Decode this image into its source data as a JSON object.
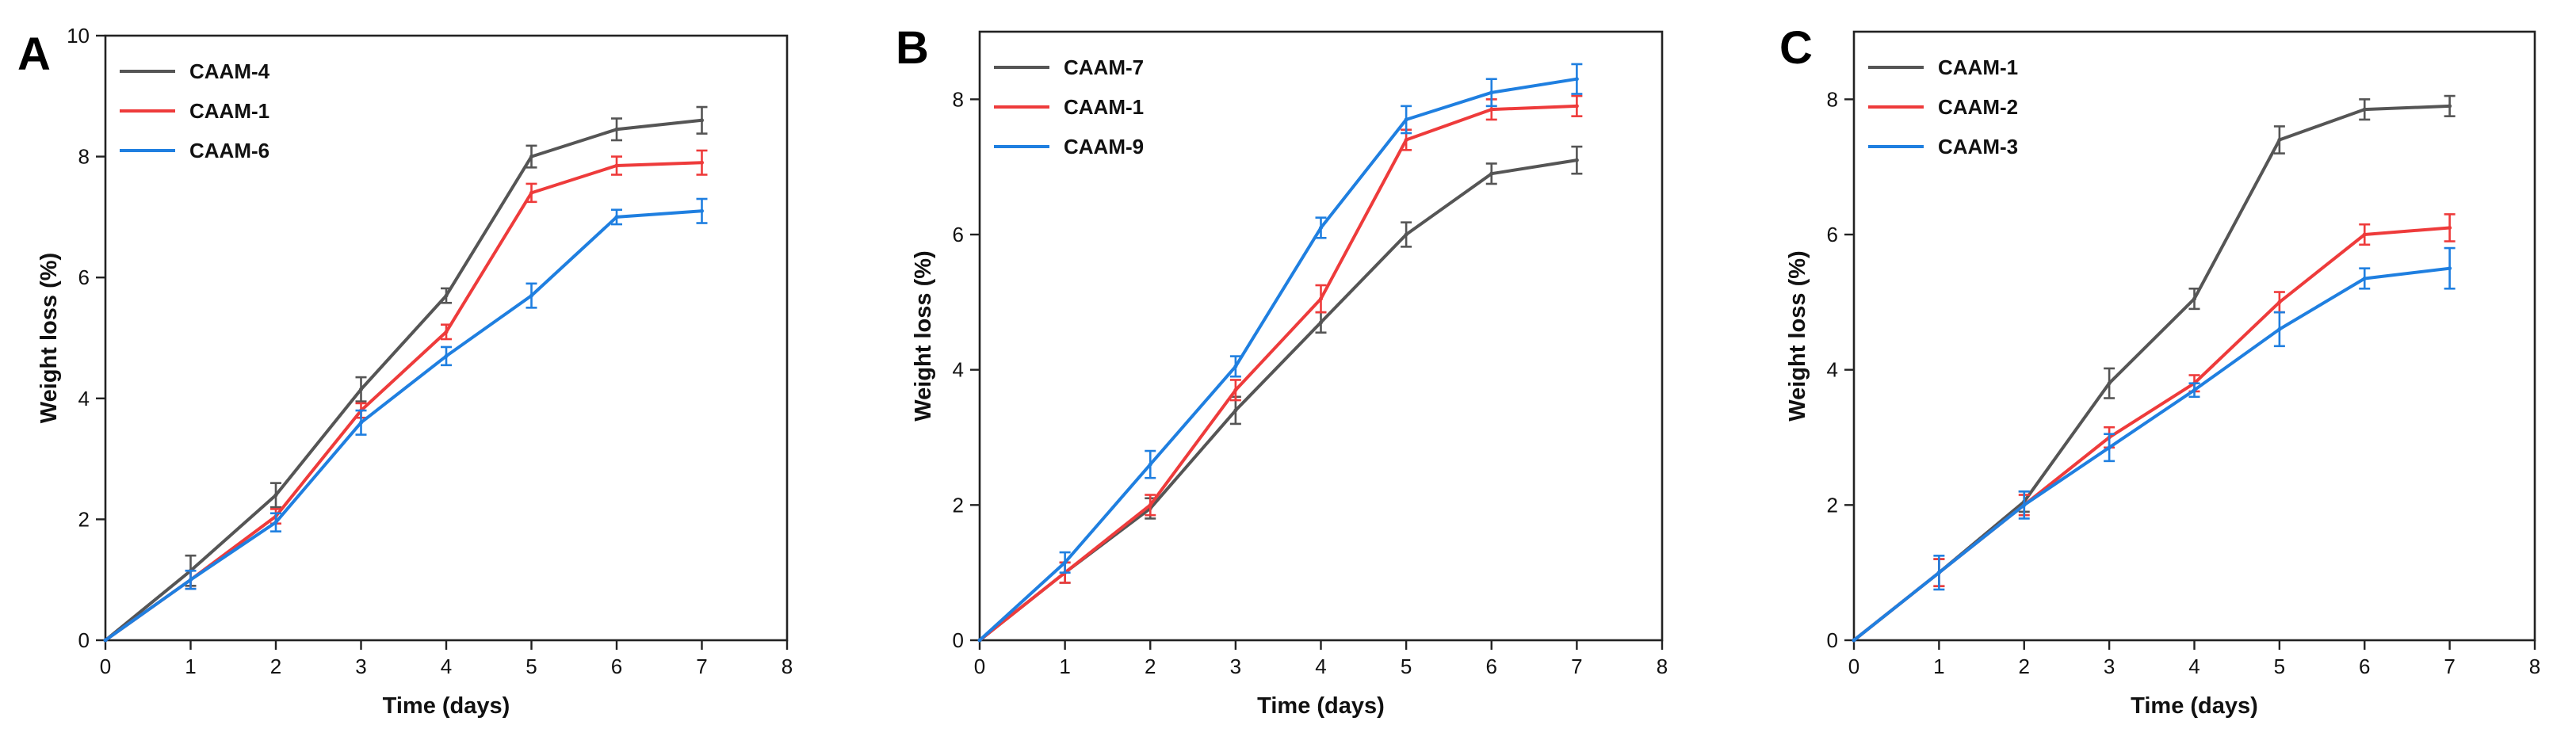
{
  "colors": {
    "black": "#555555",
    "red": "#ee3b3b",
    "blue": "#1f7fe0",
    "axis": "#222222"
  },
  "chart_data": [
    {
      "type": "line",
      "panel_label": "A",
      "xlabel": "Time (days)",
      "ylabel": "Weight loss (%)",
      "xlim": [
        0,
        8
      ],
      "ylim": [
        0,
        10
      ],
      "xticks": [
        "0",
        "1",
        "2",
        "3",
        "4",
        "5",
        "6",
        "7",
        "8"
      ],
      "yticks": [
        "0",
        "2",
        "4",
        "6",
        "8",
        "10"
      ],
      "x": [
        0,
        1,
        2,
        3,
        4,
        5,
        6,
        7
      ],
      "legend_position": "top-left",
      "series": [
        {
          "name": "CAAM-4",
          "color": "#555555",
          "values": [
            0,
            1.15,
            2.4,
            4.15,
            5.7,
            8.0,
            8.45,
            8.6
          ],
          "errors": [
            0,
            0.25,
            0.2,
            0.2,
            0.12,
            0.18,
            0.18,
            0.22
          ]
        },
        {
          "name": "CAAM-1",
          "color": "#ee3b3b",
          "values": [
            0,
            1.0,
            2.05,
            3.8,
            5.1,
            7.4,
            7.85,
            7.9
          ],
          "errors": [
            0,
            0.15,
            0.12,
            0.12,
            0.12,
            0.15,
            0.15,
            0.2
          ]
        },
        {
          "name": "CAAM-6",
          "color": "#1f7fe0",
          "values": [
            0,
            1.0,
            1.95,
            3.6,
            4.7,
            5.7,
            7.0,
            7.1
          ],
          "errors": [
            0,
            0.15,
            0.15,
            0.2,
            0.15,
            0.2,
            0.12,
            0.2
          ]
        }
      ]
    },
    {
      "type": "line",
      "panel_label": "B",
      "xlabel": "Time (days)",
      "ylabel": "Weight loss (%)",
      "xlim": [
        0,
        8
      ],
      "ylim": [
        0,
        9
      ],
      "xticks": [
        "0",
        "1",
        "2",
        "3",
        "4",
        "5",
        "6",
        "7",
        "8"
      ],
      "yticks": [
        "0",
        "2",
        "4",
        "6",
        "8"
      ],
      "x": [
        0,
        1,
        2,
        3,
        4,
        5,
        6,
        7
      ],
      "legend_position": "top-left",
      "series": [
        {
          "name": "CAAM-7",
          "color": "#555555",
          "values": [
            0,
            1.0,
            1.95,
            3.4,
            4.7,
            6.0,
            6.9,
            7.1
          ],
          "errors": [
            0,
            0.15,
            0.15,
            0.2,
            0.15,
            0.18,
            0.15,
            0.2
          ]
        },
        {
          "name": "CAAM-1",
          "color": "#ee3b3b",
          "values": [
            0,
            1.0,
            2.0,
            3.7,
            5.05,
            7.4,
            7.85,
            7.9
          ],
          "errors": [
            0,
            0.15,
            0.15,
            0.15,
            0.2,
            0.15,
            0.15,
            0.15
          ]
        },
        {
          "name": "CAAM-9",
          "color": "#1f7fe0",
          "values": [
            0,
            1.15,
            2.6,
            4.05,
            6.1,
            7.7,
            8.1,
            8.3
          ],
          "errors": [
            0,
            0.15,
            0.2,
            0.15,
            0.15,
            0.2,
            0.2,
            0.22
          ]
        }
      ]
    },
    {
      "type": "line",
      "panel_label": "C",
      "xlabel": "Time (days)",
      "ylabel": "Weight loss (%)",
      "xlim": [
        0,
        8
      ],
      "ylim": [
        0,
        9
      ],
      "xticks": [
        "0",
        "1",
        "2",
        "3",
        "4",
        "5",
        "6",
        "7",
        "8"
      ],
      "yticks": [
        "0",
        "2",
        "4",
        "6",
        "8"
      ],
      "x": [
        0,
        1,
        2,
        3,
        4,
        5,
        6,
        7
      ],
      "legend_position": "top-left",
      "series": [
        {
          "name": "CAAM-1",
          "color": "#555555",
          "values": [
            0,
            1.0,
            2.05,
            3.8,
            5.05,
            7.4,
            7.85,
            7.9
          ],
          "errors": [
            0,
            0.2,
            0.15,
            0.22,
            0.15,
            0.2,
            0.15,
            0.15
          ]
        },
        {
          "name": "CAAM-2",
          "color": "#ee3b3b",
          "values": [
            0,
            1.0,
            2.0,
            3.0,
            3.8,
            5.0,
            6.0,
            6.1
          ],
          "errors": [
            0,
            0.2,
            0.15,
            0.15,
            0.12,
            0.15,
            0.15,
            0.2
          ]
        },
        {
          "name": "CAAM-3",
          "color": "#1f7fe0",
          "values": [
            0,
            1.0,
            2.0,
            2.85,
            3.7,
            4.6,
            5.35,
            5.5
          ],
          "errors": [
            0,
            0.25,
            0.2,
            0.2,
            0.1,
            0.25,
            0.15,
            0.3
          ]
        }
      ]
    }
  ]
}
